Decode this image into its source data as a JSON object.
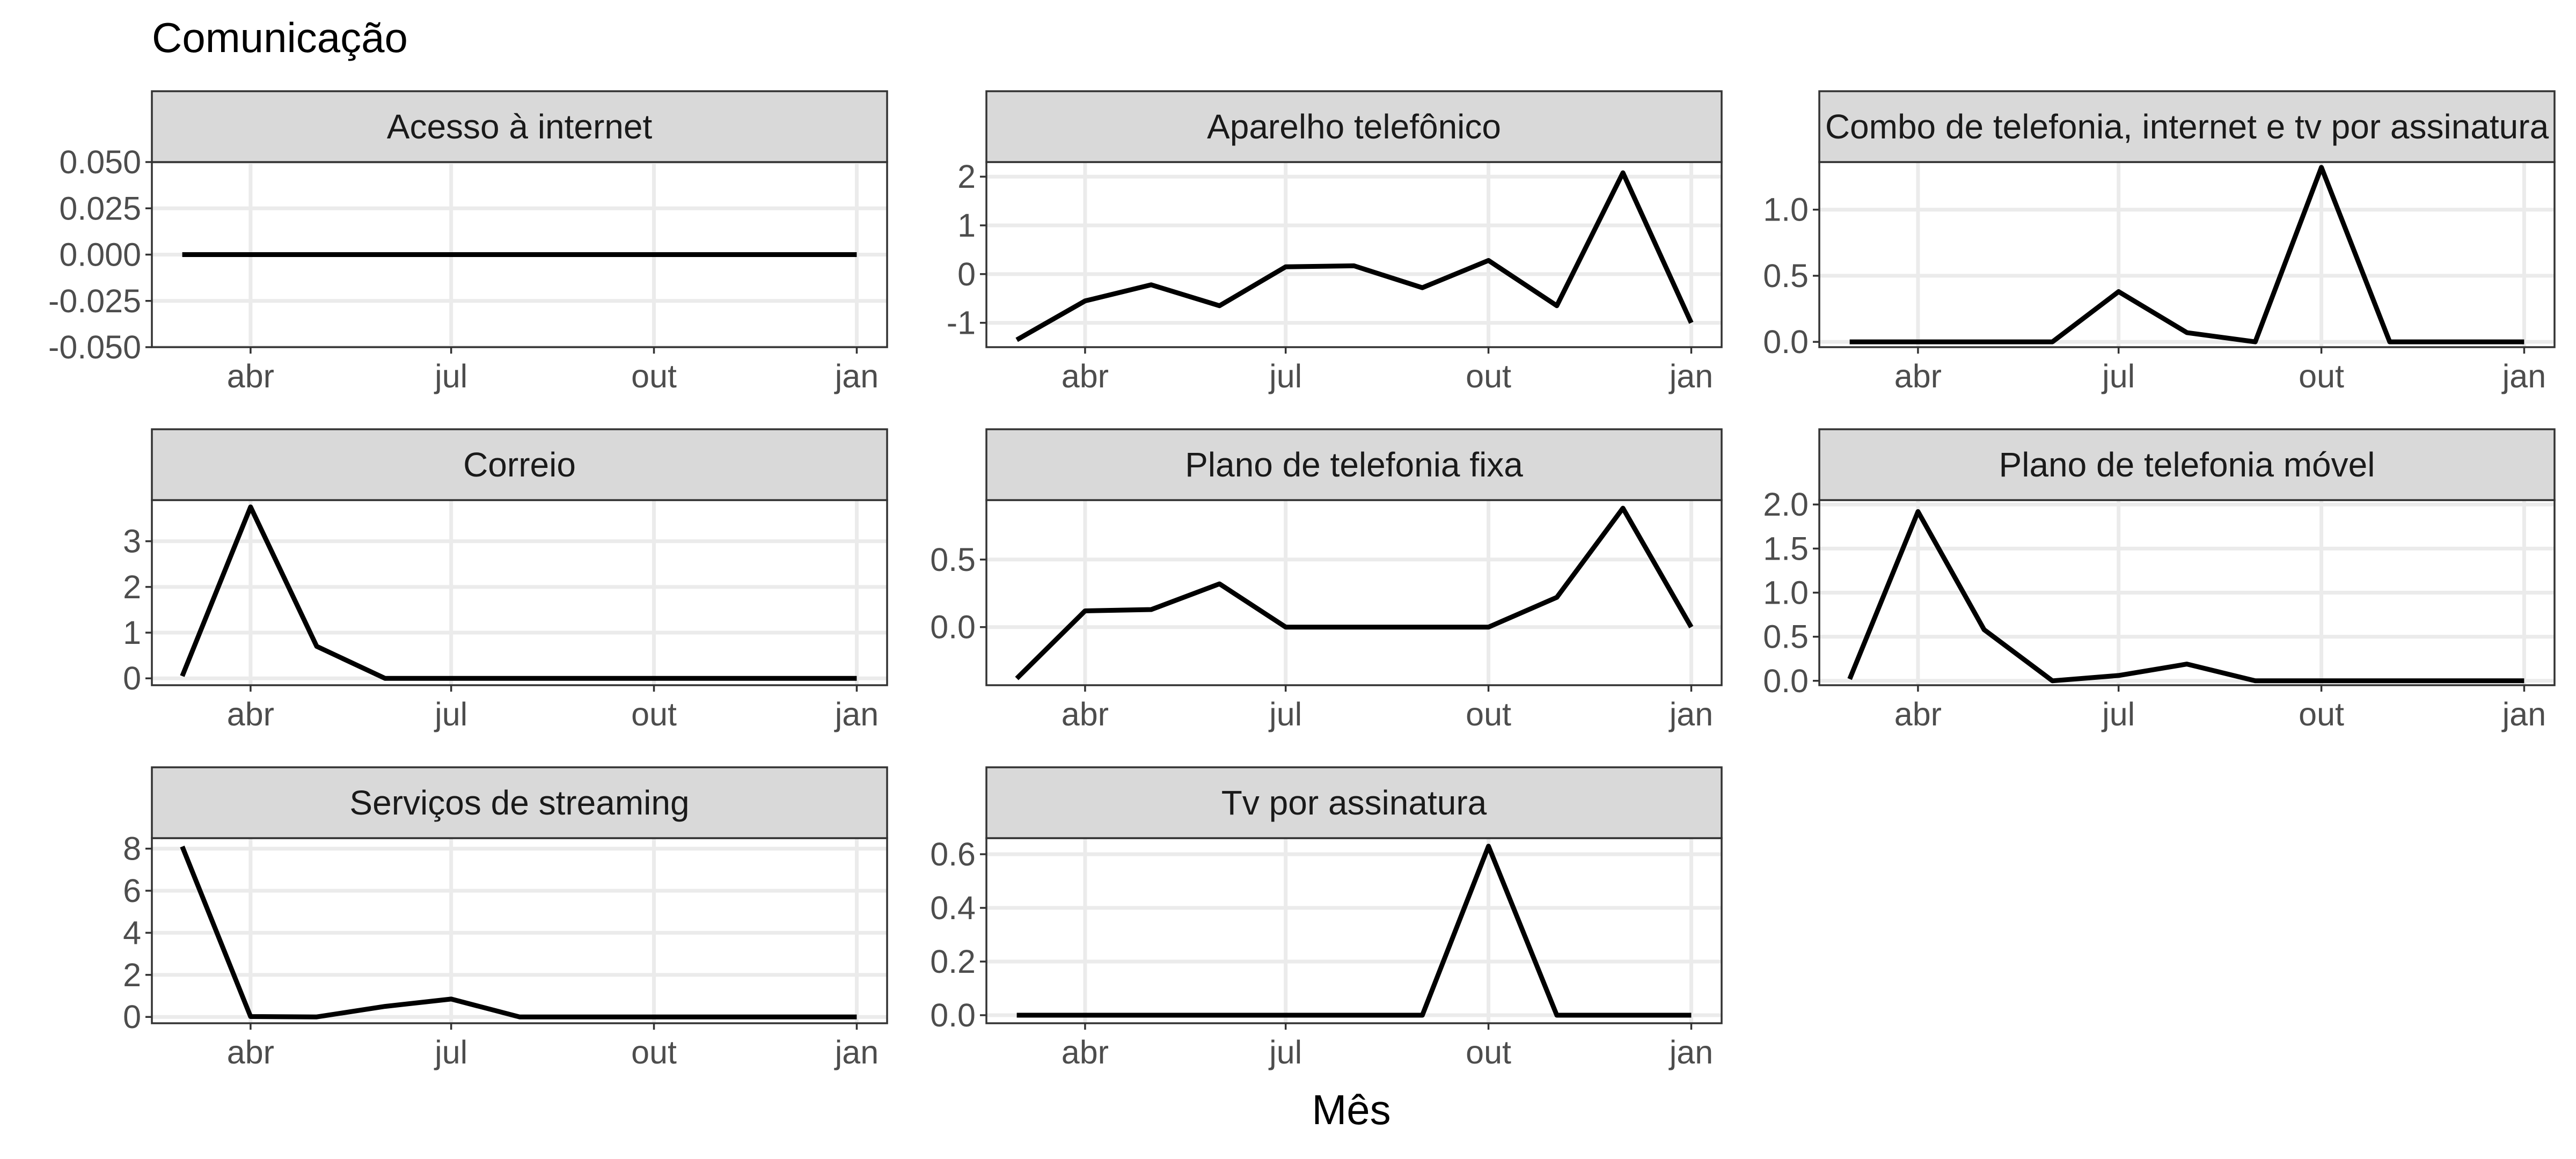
{
  "chart_data": {
    "type": "line",
    "title": "Comunicação",
    "xlabel": "Mês",
    "ylabel": "",
    "grid": true,
    "legend": "none",
    "line_color": "#000000",
    "x": [
      "2023-03-01",
      "2023-04-01",
      "2023-05-01",
      "2023-06-01",
      "2023-07-01",
      "2023-08-01",
      "2023-09-01",
      "2023-10-01",
      "2023-11-01",
      "2023-12-01",
      "2024-01-01"
    ],
    "x_ticks": [
      {
        "date": "2023-04-01",
        "label": "abr"
      },
      {
        "date": "2023-07-01",
        "label": "jul"
      },
      {
        "date": "2023-10-01",
        "label": "out"
      },
      {
        "date": "2024-01-01",
        "label": "jan"
      }
    ],
    "panels": [
      {
        "name": "Acesso à internet",
        "values": [
          0,
          0,
          0,
          0,
          0,
          0,
          0,
          0,
          0,
          0,
          0
        ],
        "ylim": [
          -0.05,
          0.05
        ],
        "yticks": [
          -0.05,
          -0.025,
          0,
          0.025,
          0.05
        ],
        "ytick_labels": [
          "-0.050",
          "-0.025",
          "0.000",
          "0.025",
          "0.050"
        ]
      },
      {
        "name": "Aparelho telefônico",
        "values": [
          -1.35,
          -0.55,
          -0.22,
          -0.65,
          0.15,
          0.17,
          -0.28,
          0.28,
          -0.65,
          2.08,
          -1.0
        ],
        "ylim": [
          -1.5,
          2.3
        ],
        "yticks": [
          -1,
          0,
          1,
          2
        ],
        "ytick_labels": [
          "-1",
          "0",
          "1",
          "2"
        ]
      },
      {
        "name": "Combo de telefonia, internet e tv por assinatura",
        "values": [
          0,
          0,
          0,
          0,
          0.38,
          0.07,
          0,
          1.32,
          0,
          0,
          0
        ],
        "ylim": [
          -0.04,
          1.36
        ],
        "yticks": [
          0,
          0.5,
          1
        ],
        "ytick_labels": [
          "0.0",
          "0.5",
          "1.0"
        ]
      },
      {
        "name": "Correio",
        "values": [
          0.05,
          3.75,
          0.7,
          0,
          0,
          0,
          0,
          0,
          0,
          0,
          0
        ],
        "ylim": [
          -0.15,
          3.9
        ],
        "yticks": [
          0,
          1,
          2,
          3
        ],
        "ytick_labels": [
          "0",
          "1",
          "2",
          "3"
        ]
      },
      {
        "name": "Plano de telefonia fixa",
        "values": [
          -0.38,
          0.12,
          0.13,
          0.32,
          0,
          0,
          0,
          0,
          0.22,
          0.88,
          0
        ],
        "ylim": [
          -0.43,
          0.94
        ],
        "yticks": [
          0,
          0.5
        ],
        "ytick_labels": [
          "0.0",
          "0.5"
        ]
      },
      {
        "name": "Plano de telefonia móvel",
        "values": [
          0.02,
          1.92,
          0.58,
          0,
          0.06,
          0.19,
          0,
          0,
          0,
          0,
          0
        ],
        "ylim": [
          -0.05,
          2.05
        ],
        "yticks": [
          0,
          0.5,
          1,
          1.5,
          2
        ],
        "ytick_labels": [
          "0.0",
          "0.5",
          "1.0",
          "1.5",
          "2.0"
        ]
      },
      {
        "name": "Serviços de streaming",
        "values": [
          8.1,
          0.02,
          0,
          0.5,
          0.85,
          0,
          0,
          0,
          0,
          0,
          0
        ],
        "ylim": [
          -0.3,
          8.5
        ],
        "yticks": [
          0,
          2,
          4,
          6,
          8
        ],
        "ytick_labels": [
          "0",
          "2",
          "4",
          "6",
          "8"
        ]
      },
      {
        "name": "Tv por assinatura",
        "values": [
          0,
          0,
          0,
          0,
          0,
          0,
          0,
          0.63,
          0,
          0,
          0
        ],
        "ylim": [
          -0.03,
          0.66
        ],
        "yticks": [
          0,
          0.2,
          0.4,
          0.6
        ],
        "ytick_labels": [
          "0.0",
          "0.2",
          "0.4",
          "0.6"
        ]
      }
    ]
  }
}
